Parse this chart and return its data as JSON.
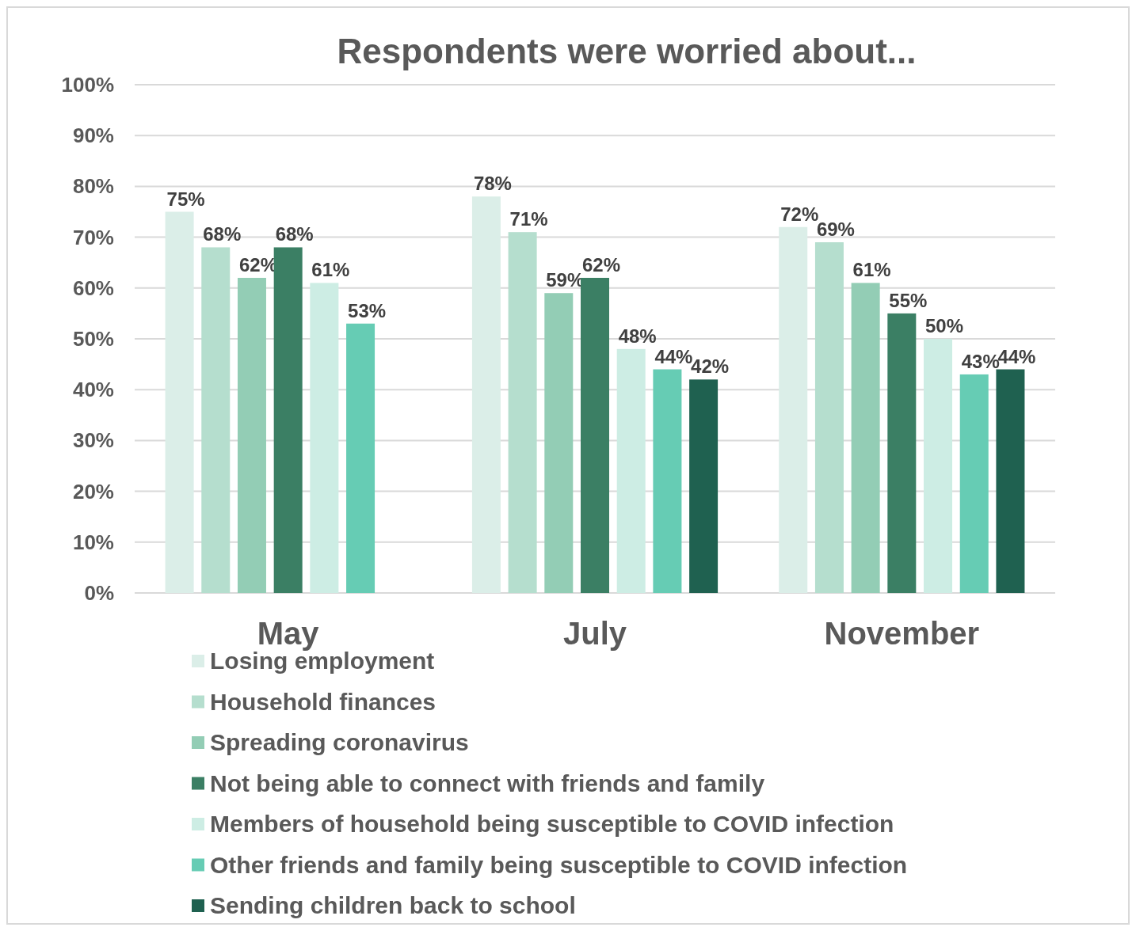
{
  "chart_data": {
    "type": "bar",
    "title": "Respondents were worried about...",
    "categories": [
      "May",
      "July",
      "November"
    ],
    "series": [
      {
        "name": "Losing employment",
        "color": "#dbeee8",
        "values": [
          75,
          78,
          72
        ],
        "value_labels": [
          "75%",
          "78%",
          "72%"
        ]
      },
      {
        "name": "Household finances",
        "color": "#b5dece",
        "values": [
          68,
          71,
          69
        ],
        "value_labels": [
          "68%",
          "71%",
          "69%"
        ]
      },
      {
        "name": "Spreading coronavirus",
        "color": "#93cdb5",
        "values": [
          62,
          59,
          61
        ],
        "value_labels": [
          "62%",
          "59%",
          "61%"
        ]
      },
      {
        "name": "Not being able to connect with friends and family",
        "color": "#3b7f64",
        "values": [
          68,
          62,
          55
        ],
        "value_labels": [
          "68%",
          "62%",
          "55%"
        ]
      },
      {
        "name": "Members of household being susceptible to COVID infection",
        "color": "#cdede4",
        "values": [
          61,
          48,
          50
        ],
        "value_labels": [
          "61%",
          "48%",
          "50%"
        ]
      },
      {
        "name": "Other friends and family being susceptible to COVID infection",
        "color": "#66ccb4",
        "values": [
          53,
          44,
          43
        ],
        "value_labels": [
          "53%",
          "44%",
          "43%"
        ]
      },
      {
        "name": "Sending children back to school",
        "color": "#1f6150",
        "values": [
          null,
          42,
          44
        ],
        "value_labels": [
          null,
          "42%",
          "44%"
        ]
      }
    ],
    "ylim": [
      0,
      100
    ],
    "yticks": [
      {
        "value": 0,
        "label": "0%"
      },
      {
        "value": 10,
        "label": "10%"
      },
      {
        "value": 20,
        "label": "20%"
      },
      {
        "value": 30,
        "label": "30%"
      },
      {
        "value": 40,
        "label": "40%"
      },
      {
        "value": 50,
        "label": "50%"
      },
      {
        "value": 60,
        "label": "60%"
      },
      {
        "value": 70,
        "label": "70%"
      },
      {
        "value": 80,
        "label": "80%"
      },
      {
        "value": 90,
        "label": "90%"
      },
      {
        "value": 100,
        "label": "100%"
      }
    ],
    "grid": "y",
    "legend": "bottom"
  }
}
